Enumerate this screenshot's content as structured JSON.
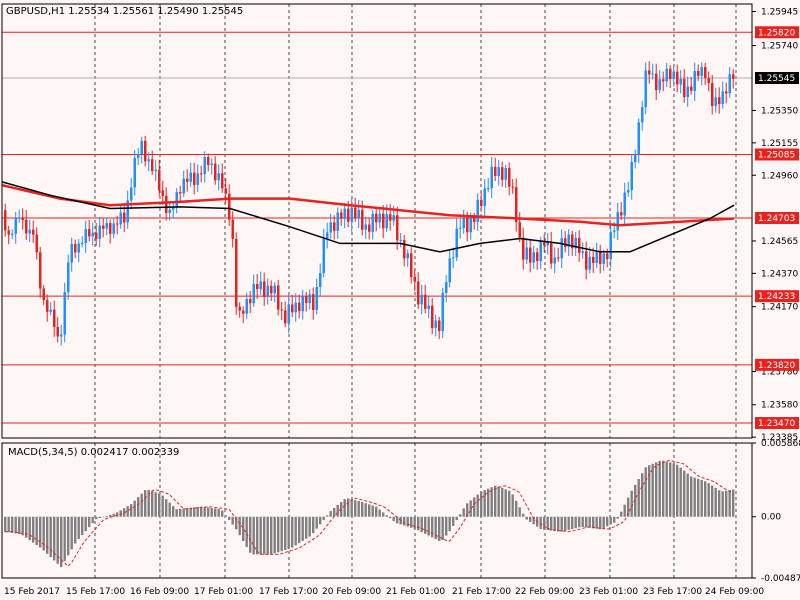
{
  "window": {
    "symbol_info": "GBPUSD,H1  1.25534 1.25561 1.25490 1.25545",
    "macd_info": "MACD(5,34,5) 0.002417 0.002339"
  },
  "colors": {
    "background": "#fff6f6",
    "bull": "#1e90ff",
    "bear": "#e8231f",
    "ma_fast": "#e8231f",
    "ma_slow": "#000000",
    "hline": "#e8231f",
    "macd_hist": "#808080",
    "signal": "#e8231f"
  },
  "chart_data": {
    "type": "candlestick",
    "price_axis_labels": [
      "1.25945",
      "1.25740",
      "1.25350",
      "1.25155",
      "1.24960",
      "1.24565",
      "1.24370",
      "1.24170",
      "1.23780",
      "1.23580",
      "1.23385"
    ],
    "current_price": "1.25545",
    "horizontal_levels": [
      "1.25820",
      "1.25085",
      "1.24703",
      "1.24233",
      "1.23820",
      "1.23470"
    ],
    "price_range": [
      1.2338,
      1.2599
    ],
    "time_labels": [
      "15 Feb 2017",
      "15 Feb 17:00",
      "16 Feb 09:00",
      "17 Feb 01:00",
      "17 Feb 17:00",
      "20 Feb 09:00",
      "21 Feb 01:00",
      "21 Feb 17:00",
      "22 Feb 09:00",
      "23 Feb 01:00",
      "23 Feb 17:00",
      "24 Feb 09:00"
    ],
    "macd": {
      "labels": [
        "0.005868",
        "0.00",
        "-0.004876"
      ],
      "range": [
        -0.004876,
        0.005868
      ]
    },
    "indicators": [
      "moving average fast (red)",
      "moving average slow (black)"
    ]
  }
}
